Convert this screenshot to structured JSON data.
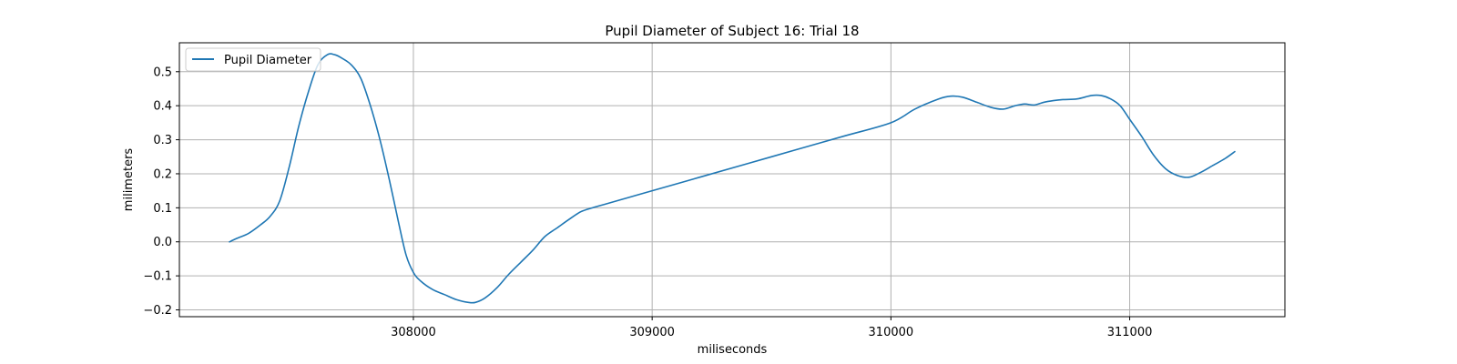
{
  "chart_data": {
    "type": "line",
    "title": "Pupil Diameter of Subject 16: Trial 18",
    "xlabel": "miliseconds",
    "ylabel": "milimeters",
    "xlim": [
      307020,
      311650
    ],
    "ylim": [
      -0.22,
      0.585
    ],
    "xticks": [
      308000,
      309000,
      310000,
      311000
    ],
    "yticks": [
      -0.2,
      -0.1,
      0.0,
      0.1,
      0.2,
      0.3,
      0.4,
      0.5
    ],
    "ytick_labels": [
      "−0.2",
      "−0.1",
      "0.0",
      "0.1",
      "0.2",
      "0.3",
      "0.4",
      "0.5"
    ],
    "grid": true,
    "legend_position": "upper-left",
    "series": [
      {
        "name": "Pupil Diameter",
        "color": "#1f77b4",
        "x": [
          307230,
          307260,
          307310,
          307360,
          307400,
          307440,
          307480,
          307520,
          307560,
          307600,
          307640,
          307670,
          307700,
          307740,
          307780,
          307820,
          307860,
          307900,
          307940,
          307970,
          308000,
          308030,
          308080,
          308130,
          308180,
          308230,
          308260,
          308300,
          308350,
          308400,
          308450,
          308500,
          308550,
          308600,
          308650,
          308700,
          308750,
          308800,
          308900,
          309000,
          309200,
          309400,
          309600,
          309800,
          310000,
          310100,
          310200,
          310250,
          310300,
          310360,
          310420,
          310470,
          310520,
          310560,
          310600,
          310640,
          310680,
          310720,
          310780,
          310840,
          310880,
          310920,
          310960,
          311000,
          311050,
          311100,
          311150,
          311200,
          311250,
          311300,
          311350,
          311400,
          311440
        ],
        "y": [
          0.0,
          0.01,
          0.025,
          0.05,
          0.075,
          0.12,
          0.22,
          0.34,
          0.44,
          0.52,
          0.55,
          0.55,
          0.54,
          0.52,
          0.48,
          0.4,
          0.3,
          0.18,
          0.05,
          -0.04,
          -0.09,
          -0.115,
          -0.14,
          -0.155,
          -0.17,
          -0.178,
          -0.178,
          -0.165,
          -0.135,
          -0.095,
          -0.06,
          -0.025,
          0.015,
          0.04,
          0.065,
          0.088,
          0.1,
          0.11,
          0.13,
          0.15,
          0.19,
          0.23,
          0.27,
          0.31,
          0.35,
          0.39,
          0.42,
          0.428,
          0.425,
          0.41,
          0.395,
          0.39,
          0.4,
          0.405,
          0.402,
          0.41,
          0.415,
          0.418,
          0.42,
          0.43,
          0.43,
          0.42,
          0.4,
          0.36,
          0.31,
          0.255,
          0.215,
          0.195,
          0.19,
          0.205,
          0.225,
          0.245,
          0.265
        ]
      }
    ]
  }
}
